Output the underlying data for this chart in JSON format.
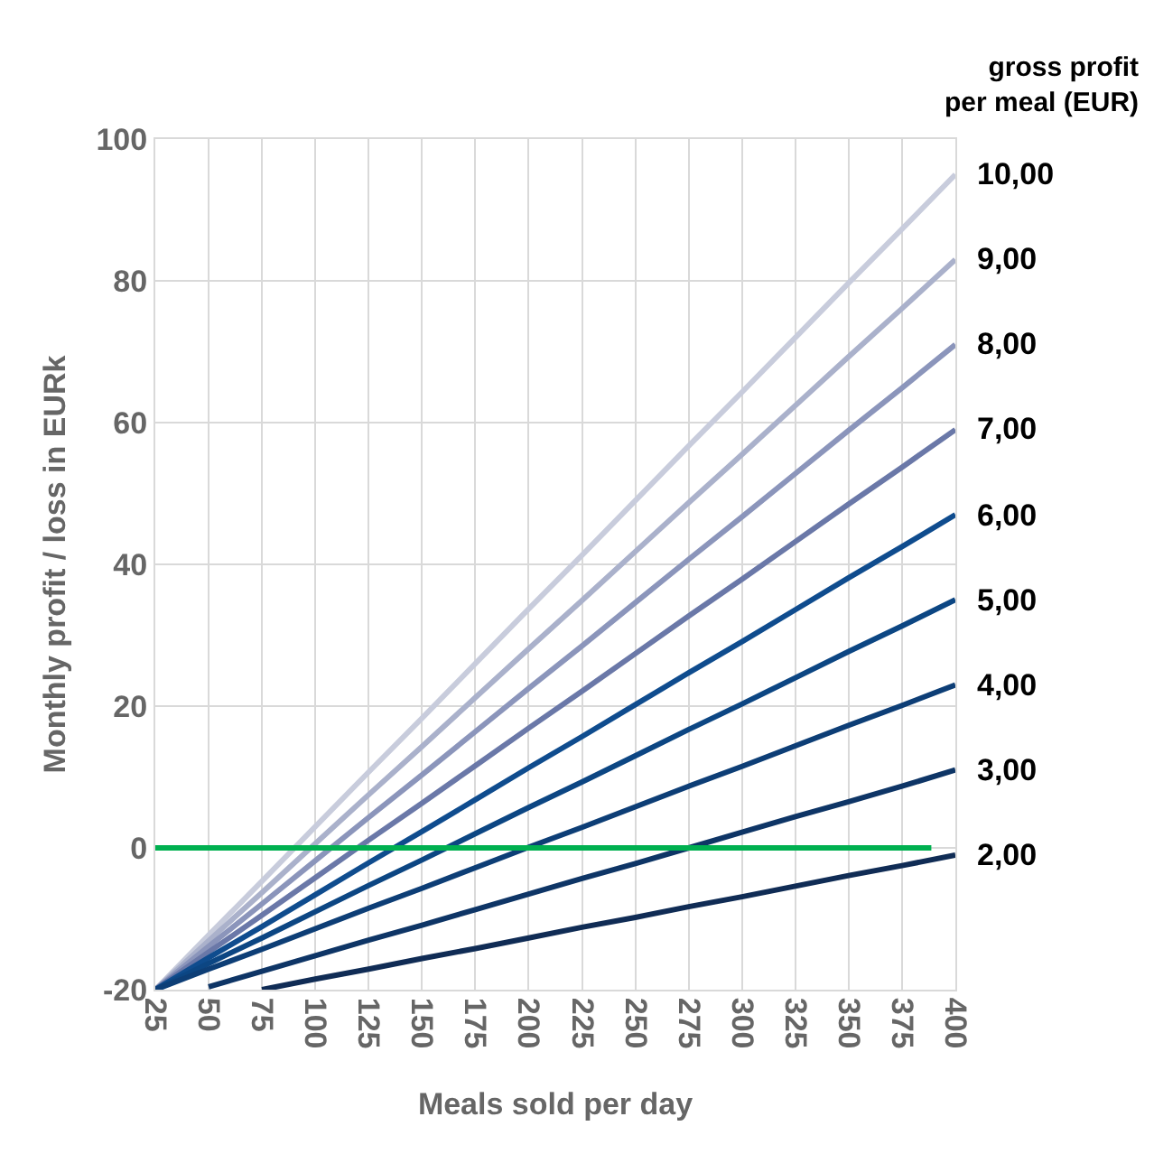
{
  "chart_data": {
    "type": "line",
    "xlabel": "Meals sold per day",
    "ylabel": "Monthly profit / loss in EURk",
    "legend_title": "gross profit per meal (EUR)",
    "x": [
      25,
      50,
      75,
      100,
      125,
      150,
      175,
      200,
      225,
      250,
      275,
      300,
      325,
      350,
      375,
      400
    ],
    "xlim": [
      25,
      400
    ],
    "xticks": [
      25,
      50,
      75,
      100,
      125,
      150,
      175,
      200,
      225,
      250,
      275,
      300,
      325,
      350,
      375,
      400
    ],
    "ylim": [
      -20,
      100
    ],
    "yticks": [
      -20,
      0,
      20,
      40,
      60,
      80,
      100
    ],
    "grid": true,
    "legend": false,
    "series": [
      {
        "name": "10,00",
        "color": "#c8ccdc",
        "values": [
          -20,
          -12.3,
          -4.7,
          3,
          10.7,
          18.3,
          26,
          33.7,
          41.3,
          49,
          56.7,
          64.3,
          72,
          79.7,
          87.3,
          95
        ]
      },
      {
        "name": "9,00",
        "color": "#aab1cb",
        "values": [
          -20,
          -13.1,
          -6.3,
          0.6,
          7.5,
          14.3,
          21.2,
          28.1,
          34.9,
          41.8,
          48.7,
          55.5,
          62.4,
          69.3,
          76.1,
          83
        ]
      },
      {
        "name": "8,00",
        "color": "#8b95bb",
        "values": [
          -20,
          -13.9,
          -7.9,
          -1.8,
          4.3,
          10.3,
          16.4,
          22.5,
          28.5,
          34.6,
          40.7,
          46.7,
          52.8,
          58.9,
          64.9,
          71
        ]
      },
      {
        "name": "7,00",
        "color": "#6a78a8",
        "values": [
          -20,
          -14.7,
          -9.5,
          -4.2,
          1.1,
          6.3,
          11.6,
          16.9,
          22.1,
          27.4,
          32.7,
          37.9,
          43.2,
          48.5,
          53.7,
          59
        ]
      },
      {
        "name": "6,00",
        "color": "#0f4c8e",
        "values": [
          -20,
          -15.5,
          -11.1,
          -6.6,
          -2.1,
          2.3,
          6.8,
          11.3,
          15.7,
          20.2,
          24.7,
          29.1,
          33.6,
          38.1,
          42.5,
          47
        ]
      },
      {
        "name": "5,00",
        "color": "#0c4683",
        "values": [
          -20,
          -16.3,
          -12.7,
          -9,
          -5.3,
          -1.7,
          2,
          5.7,
          9.3,
          13,
          16.7,
          20.3,
          24,
          27.7,
          31.3,
          35
        ]
      },
      {
        "name": "4,00",
        "color": "#0d3e76",
        "values": [
          -20,
          -17.1,
          -14.3,
          -11.4,
          -8.5,
          -5.7,
          -2.8,
          0.1,
          2.9,
          5.8,
          8.7,
          11.5,
          14.4,
          17.3,
          20.1,
          23
        ]
      },
      {
        "name": "3,00",
        "color": "#0e3566",
        "values": [
          null,
          -19.6,
          -17.4,
          -15.2,
          -13,
          -10.9,
          -8.7,
          -6.5,
          -4.3,
          -2.2,
          0,
          2.2,
          4.4,
          6.5,
          8.7,
          11
        ]
      },
      {
        "name": "2,00",
        "color": "#102c55",
        "values": [
          null,
          null,
          -20,
          -18.5,
          -17.1,
          -15.6,
          -14.2,
          -12.7,
          -11.2,
          -9.8,
          -8.3,
          -6.9,
          -5.4,
          -3.9,
          -2.5,
          -1
        ]
      }
    ],
    "ref_lines": [
      {
        "axis": "y",
        "value": 0,
        "color": "#00b050"
      }
    ]
  }
}
